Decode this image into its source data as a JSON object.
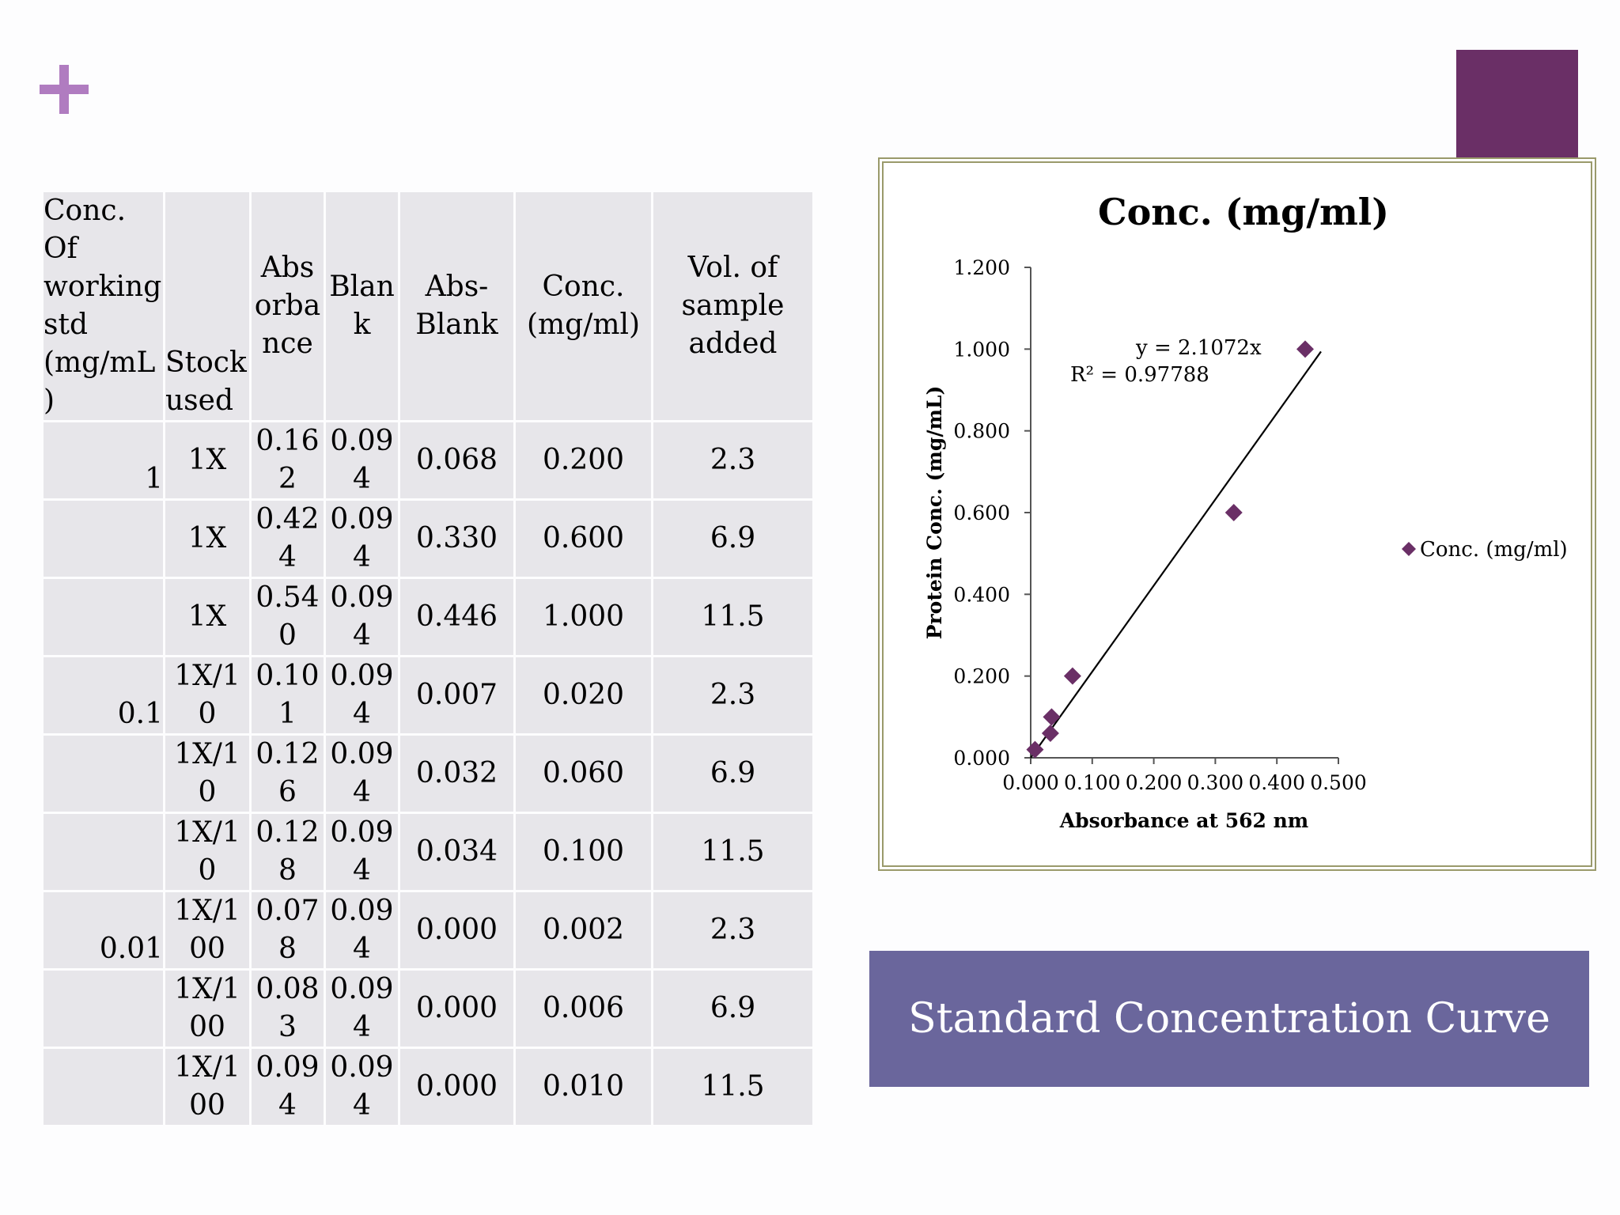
{
  "table": {
    "headers": [
      "Conc.\nOf\nworking\nstd\n(mg/mL\n)",
      "Stock\nused",
      "Abs\norba\nnce",
      "Blan\nk",
      "Abs-\nBlank",
      "Conc.\n(mg/ml)",
      "Vol. of\nsample\nadded"
    ],
    "rows": [
      [
        "1",
        "1X",
        "0.16\n2",
        "0.09\n4",
        "0.068",
        "0.200",
        "2.3"
      ],
      [
        "",
        "1X",
        "0.42\n4",
        "0.09\n4",
        "0.330",
        "0.600",
        "6.9"
      ],
      [
        "",
        "1X",
        "0.54\n0",
        "0.09\n4",
        "0.446",
        "1.000",
        "11.5"
      ],
      [
        "0.1",
        "1X/1\n0",
        "0.10\n1",
        "0.09\n4",
        "0.007",
        "0.020",
        "2.3"
      ],
      [
        "",
        "1X/1\n0",
        "0.12\n6",
        "0.09\n4",
        "0.032",
        "0.060",
        "6.9"
      ],
      [
        "",
        "1X/1\n0",
        "0.12\n8",
        "0.09\n4",
        "0.034",
        "0.100",
        "11.5"
      ],
      [
        "0.01",
        "1X/1\n00",
        "0.07\n8",
        "0.09\n4",
        "0.000",
        "0.002",
        "2.3"
      ],
      [
        "",
        "1X/1\n00",
        "0.08\n3",
        "0.09\n4",
        "0.000",
        "0.006",
        "6.9"
      ],
      [
        "",
        "1X/1\n00",
        "0.09\n4",
        "0.09\n4",
        "0.000",
        "0.010",
        "11.5"
      ]
    ]
  },
  "chart_data": {
    "type": "scatter",
    "title": "Conc. (mg/ml)",
    "xlabel": "Absorbance at 562 nm",
    "ylabel": "Protein Conc. (mg/mL)",
    "xlim": [
      0,
      0.5
    ],
    "ylim": [
      0,
      1.2
    ],
    "x_ticks": [
      "0.000",
      "0.100",
      "0.200",
      "0.300",
      "0.400",
      "0.500"
    ],
    "y_ticks": [
      "0.000",
      "0.200",
      "0.400",
      "0.600",
      "0.800",
      "1.000",
      "1.200"
    ],
    "series": [
      {
        "name": "Conc. (mg/ml)",
        "color": "#6a2f66",
        "x": [
          0.068,
          0.33,
          0.446,
          0.007,
          0.032,
          0.034
        ],
        "y": [
          0.2,
          0.6,
          1.0,
          0.02,
          0.06,
          0.1
        ]
      }
    ],
    "trendline": {
      "slope": 2.1072,
      "equation": "y = 2.1072x",
      "r_squared": "R² = 0.97788"
    },
    "legend_position": "right",
    "grid": false
  },
  "caption": "Standard Concentration Curve"
}
